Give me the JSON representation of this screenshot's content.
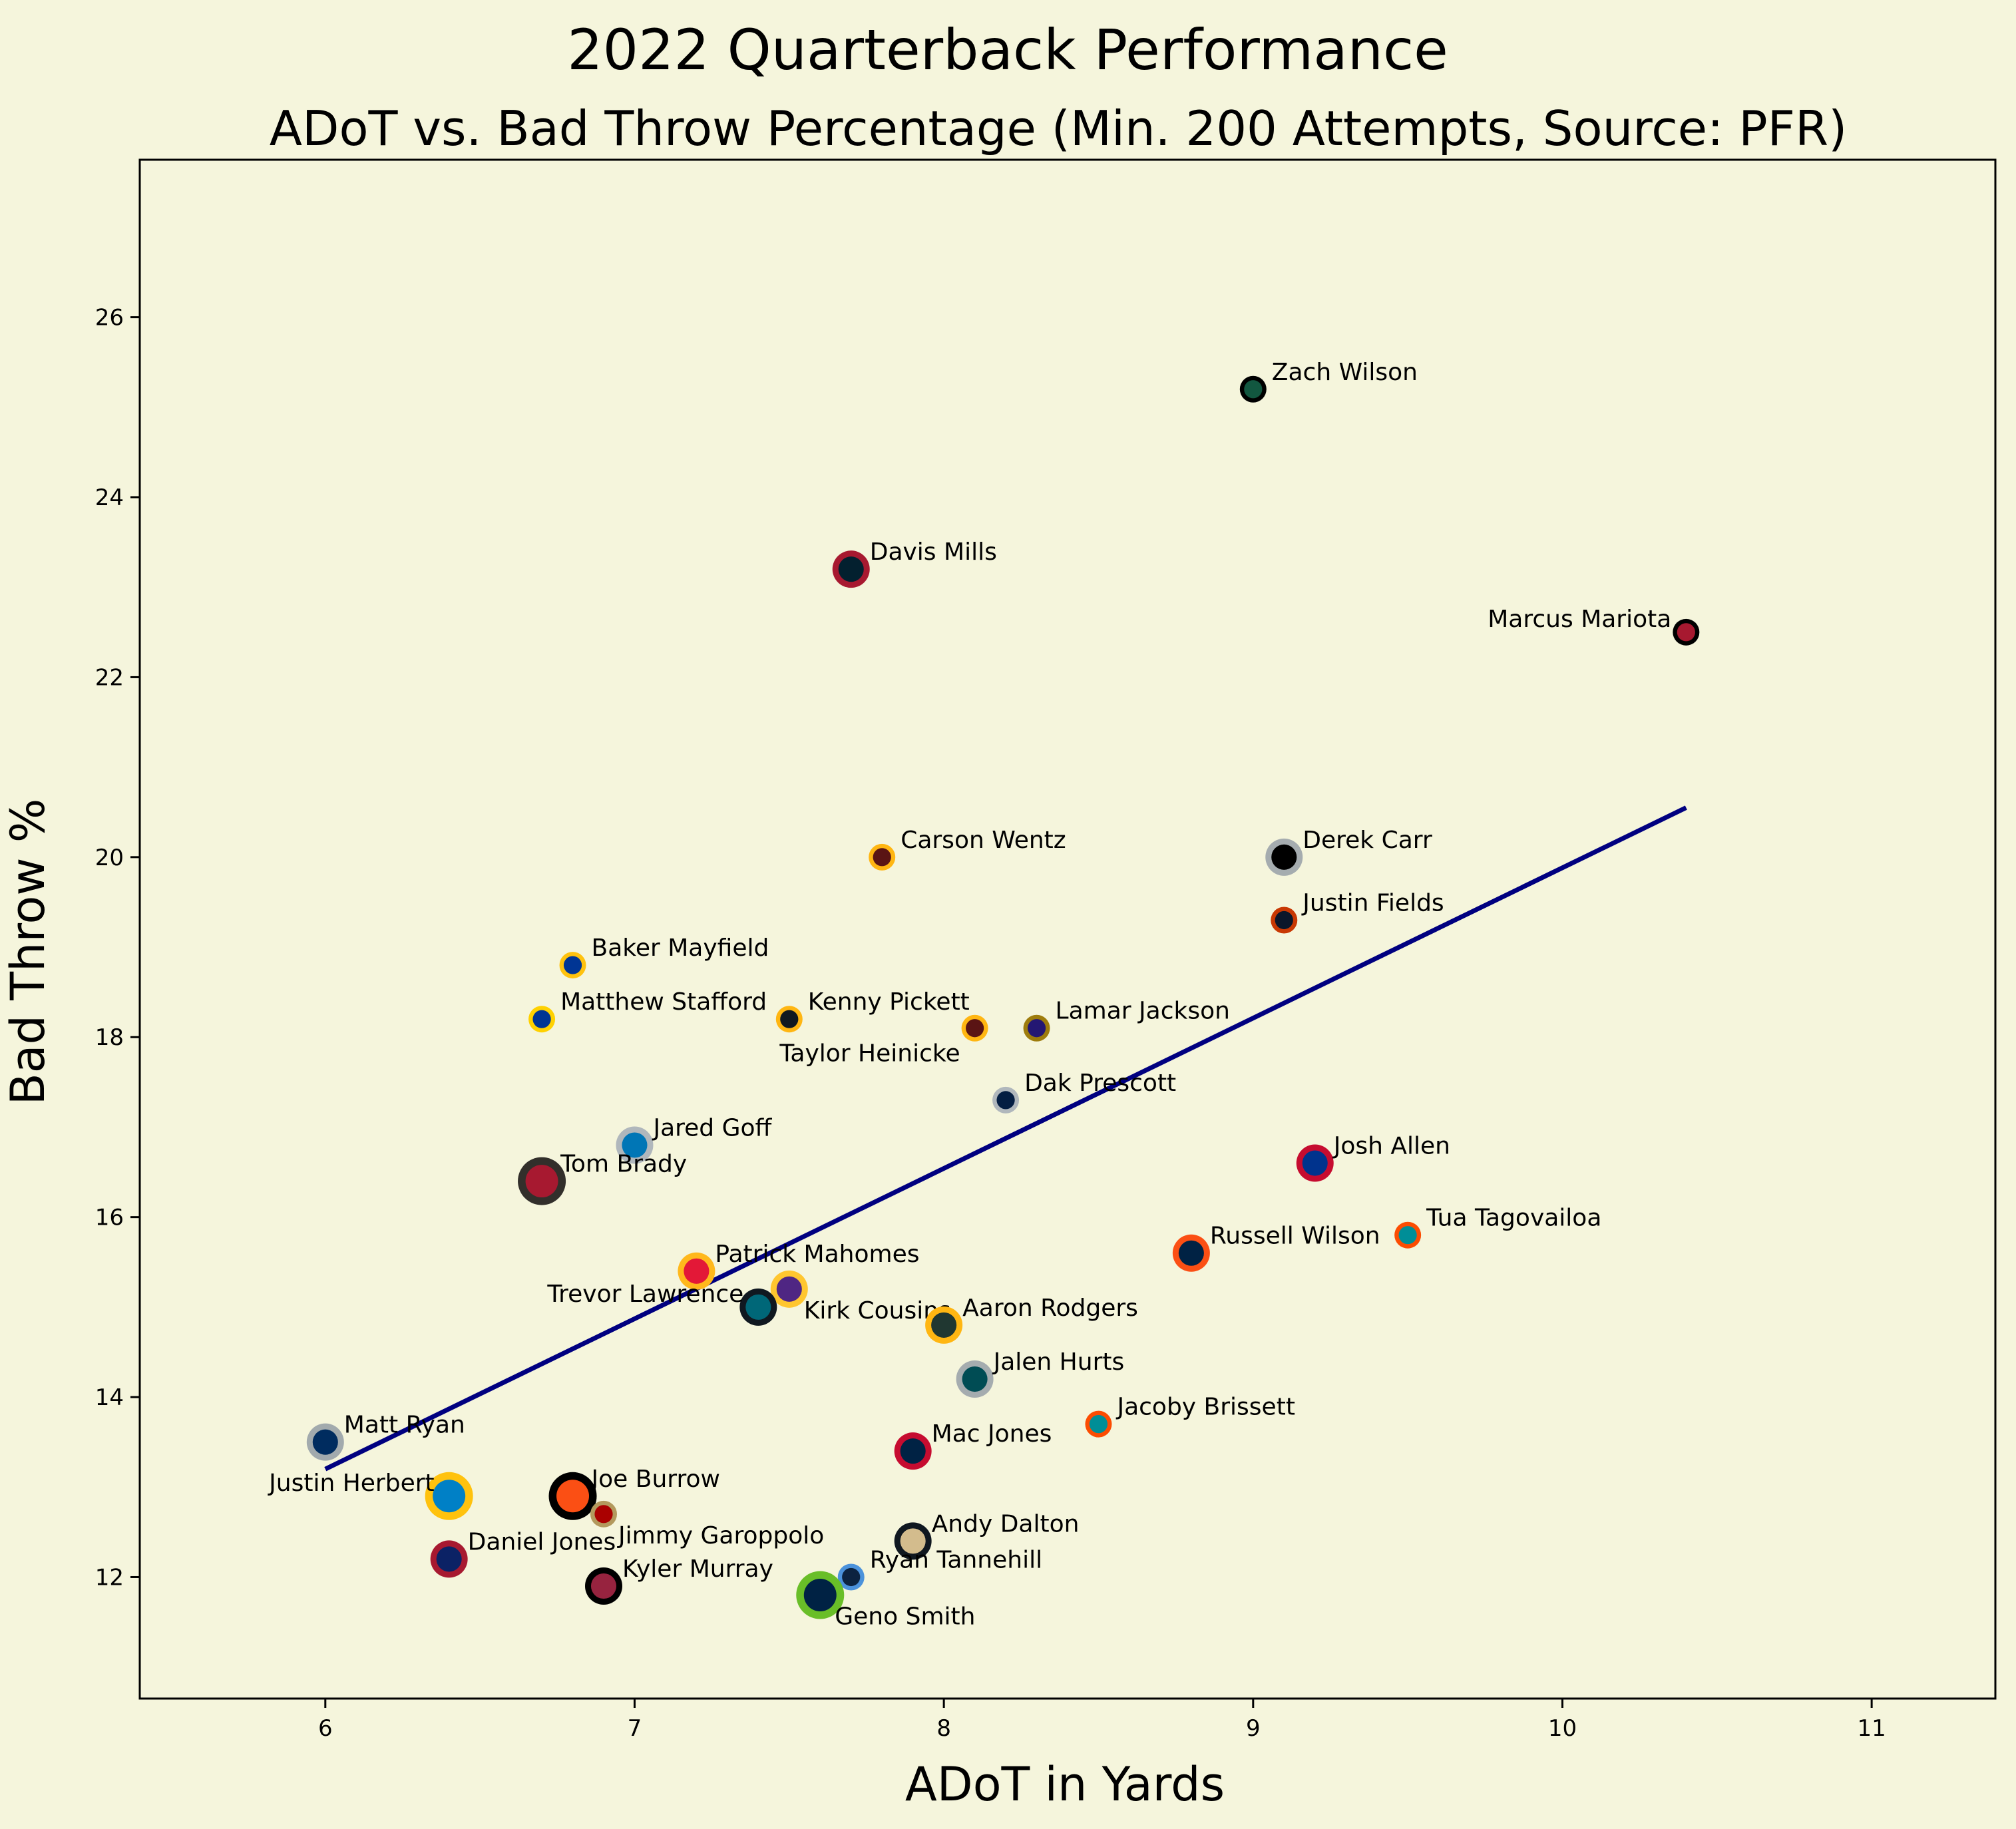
{
  "chart_data": {
    "type": "scatter",
    "title": "2022 Quarterback Performance",
    "subtitle": "ADoT vs. Bad Throw Percentage (Min. 200 Attempts, Source: PFR)",
    "xlabel": "ADoT in Yards",
    "ylabel": "Bad Throw %",
    "xlim": [
      5.4,
      11.4
    ],
    "ylim": [
      10.65,
      27.75
    ],
    "xticks": [
      6,
      7,
      8,
      9,
      10,
      11
    ],
    "yticks": [
      12,
      14,
      16,
      18,
      20,
      22,
      24,
      26
    ],
    "grid": false,
    "background": "#f5f5dc",
    "trendline": {
      "color": "#000080",
      "x": [
        6.0,
        10.4
      ],
      "y": [
        13.2,
        20.55
      ]
    },
    "points": [
      {
        "name": "Zach Wilson",
        "x": 9.0,
        "y": 25.2,
        "fill": "#125740",
        "ring": "#000000",
        "size": 1,
        "label_pos": "right"
      },
      {
        "name": "Davis Mills",
        "x": 7.7,
        "y": 23.2,
        "fill": "#03202f",
        "ring": "#a71930",
        "size": 2,
        "label_pos": "right"
      },
      {
        "name": "Marcus Mariota",
        "x": 10.4,
        "y": 22.5,
        "fill": "#a71930",
        "ring": "#000000",
        "size": 1,
        "label_pos": "left"
      },
      {
        "name": "Carson Wentz",
        "x": 7.8,
        "y": 20.0,
        "fill": "#5a1414",
        "ring": "#ffb612",
        "size": 1,
        "label_pos": "right"
      },
      {
        "name": "Derek Carr",
        "x": 9.1,
        "y": 20.0,
        "fill": "#000000",
        "ring": "#a5acaf",
        "size": 2,
        "label_pos": "right"
      },
      {
        "name": "Justin Fields",
        "x": 9.1,
        "y": 19.3,
        "fill": "#0b162a",
        "ring": "#c83803",
        "size": 1,
        "label_pos": "right"
      },
      {
        "name": "Baker Mayfield",
        "x": 6.8,
        "y": 18.8,
        "fill": "#003594",
        "ring": "#ffc20e",
        "size": 1,
        "label_pos": "right"
      },
      {
        "name": "Matthew Stafford",
        "x": 6.7,
        "y": 18.2,
        "fill": "#003594",
        "ring": "#ffd100",
        "size": 1,
        "label_pos": "right"
      },
      {
        "name": "Kenny Pickett",
        "x": 7.5,
        "y": 18.2,
        "fill": "#101820",
        "ring": "#ffb612",
        "size": 1,
        "label_pos": "right"
      },
      {
        "name": "Taylor Heinicke",
        "x": 8.1,
        "y": 18.1,
        "fill": "#5a1414",
        "ring": "#ffb612",
        "size": 1,
        "label_pos": "below-left"
      },
      {
        "name": "Lamar Jackson",
        "x": 8.3,
        "y": 18.1,
        "fill": "#241773",
        "ring": "#9e7c0c",
        "size": 1,
        "label_pos": "right"
      },
      {
        "name": "Dak Prescott",
        "x": 8.2,
        "y": 17.3,
        "fill": "#041e42",
        "ring": "#b0b7bc",
        "size": 1,
        "label_pos": "right"
      },
      {
        "name": "Jared Goff",
        "x": 7.0,
        "y": 16.8,
        "fill": "#0076b6",
        "ring": "#b0b7bc",
        "size": 2,
        "label_pos": "right"
      },
      {
        "name": "Josh Allen",
        "x": 9.2,
        "y": 16.6,
        "fill": "#00338d",
        "ring": "#c60c30",
        "size": 2,
        "label_pos": "right"
      },
      {
        "name": "Tom Brady",
        "x": 6.7,
        "y": 16.4,
        "fill": "#a71930",
        "ring": "#322f2b",
        "size": 3,
        "label_pos": "right"
      },
      {
        "name": "Tua Tagovailoa",
        "x": 9.5,
        "y": 15.8,
        "fill": "#008e97",
        "ring": "#fc4c02",
        "size": 1,
        "label_pos": "right"
      },
      {
        "name": "Russell Wilson",
        "x": 8.8,
        "y": 15.6,
        "fill": "#002244",
        "ring": "#fb4f14",
        "size": 2,
        "label_pos": "right"
      },
      {
        "name": "Patrick Mahomes",
        "x": 7.2,
        "y": 15.4,
        "fill": "#e31837",
        "ring": "#ffb81c",
        "size": 2,
        "label_pos": "right"
      },
      {
        "name": "Kirk Cousins",
        "x": 7.5,
        "y": 15.2,
        "fill": "#4f2683",
        "ring": "#ffc62f",
        "size": 2,
        "label_pos": "below-right"
      },
      {
        "name": "Trevor Lawrence",
        "x": 7.4,
        "y": 15.0,
        "fill": "#006778",
        "ring": "#101820",
        "size": 2,
        "label_pos": "left"
      },
      {
        "name": "Aaron Rodgers",
        "x": 8.0,
        "y": 14.8,
        "fill": "#203731",
        "ring": "#ffb612",
        "size": 2,
        "label_pos": "right"
      },
      {
        "name": "Jalen Hurts",
        "x": 8.1,
        "y": 14.2,
        "fill": "#004c54",
        "ring": "#a5acaf",
        "size": 2,
        "label_pos": "right"
      },
      {
        "name": "Jacoby Brissett",
        "x": 8.5,
        "y": 13.7,
        "fill": "#008e97",
        "ring": "#fc4c02",
        "size": 1,
        "label_pos": "right"
      },
      {
        "name": "Matt Ryan",
        "x": 6.0,
        "y": 13.5,
        "fill": "#002c5f",
        "ring": "#a2aaad",
        "size": 2,
        "label_pos": "right"
      },
      {
        "name": "Mac Jones",
        "x": 7.9,
        "y": 13.4,
        "fill": "#002244",
        "ring": "#c60c30",
        "size": 2,
        "label_pos": "right"
      },
      {
        "name": "Justin Herbert",
        "x": 6.4,
        "y": 12.9,
        "fill": "#0080c6",
        "ring": "#ffc20e",
        "size": 3,
        "label_pos": "left"
      },
      {
        "name": "Joe Burrow",
        "x": 6.8,
        "y": 12.9,
        "fill": "#fb4f14",
        "ring": "#000000",
        "size": 3,
        "label_pos": "right"
      },
      {
        "name": "Jimmy Garoppolo",
        "x": 6.9,
        "y": 12.7,
        "fill": "#aa0000",
        "ring": "#b3995d",
        "size": 1,
        "label_pos": "below-right"
      },
      {
        "name": "Andy Dalton",
        "x": 7.9,
        "y": 12.4,
        "fill": "#d3bc8d",
        "ring": "#101820",
        "size": 2,
        "label_pos": "right"
      },
      {
        "name": "Daniel Jones",
        "x": 6.4,
        "y": 12.2,
        "fill": "#0b2265",
        "ring": "#a71930",
        "size": 2,
        "label_pos": "right"
      },
      {
        "name": "Ryan Tannehill",
        "x": 7.7,
        "y": 12.0,
        "fill": "#0c2340",
        "ring": "#4b92db",
        "size": 1,
        "label_pos": "right"
      },
      {
        "name": "Kyler Murray",
        "x": 6.9,
        "y": 11.9,
        "fill": "#97233f",
        "ring": "#000000",
        "size": 2,
        "label_pos": "right"
      },
      {
        "name": "Geno Smith",
        "x": 7.6,
        "y": 11.8,
        "fill": "#002244",
        "ring": "#69be28",
        "size": 3,
        "label_pos": "below-right"
      }
    ]
  }
}
